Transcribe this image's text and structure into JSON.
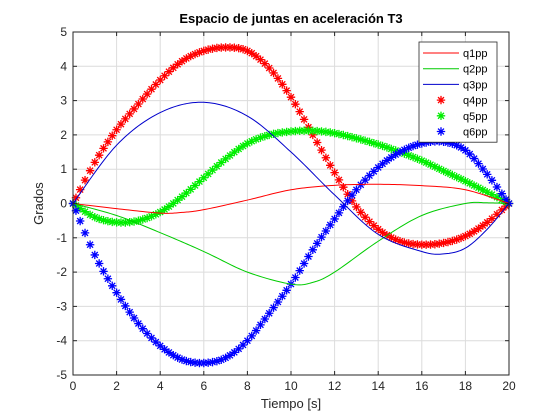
{
  "chart_data": {
    "type": "line",
    "title": "Espacio de juntas en aceleración T3",
    "xlabel": "Tiempo [s]",
    "ylabel": "Grados",
    "xlim": [
      0,
      20
    ],
    "ylim": [
      -5,
      5
    ],
    "xticks": [
      "0",
      "2",
      "4",
      "6",
      "8",
      "10",
      "12",
      "14",
      "16",
      "18",
      "20"
    ],
    "yticks": [
      "-5",
      "-4",
      "-3",
      "-2",
      "-1",
      "0",
      "1",
      "2",
      "3",
      "4",
      "5"
    ],
    "grid": true,
    "legend_position": "top-right",
    "series": [
      {
        "name": "q1pp",
        "style": "line",
        "color": "#ff0000",
        "x": [
          0,
          2,
          4,
          5,
          6,
          8,
          10,
          12,
          14,
          16,
          18,
          20
        ],
        "y": [
          0,
          -0.15,
          -0.28,
          -0.26,
          -0.18,
          0.1,
          0.4,
          0.53,
          0.56,
          0.52,
          0.4,
          0
        ]
      },
      {
        "name": "q2pp",
        "style": "line",
        "color": "#00cc00",
        "x": [
          0,
          2,
          4,
          6,
          8,
          10,
          11,
          12,
          14,
          16,
          18,
          19,
          20
        ],
        "y": [
          0,
          -0.35,
          -0.85,
          -1.4,
          -2.0,
          -2.35,
          -2.3,
          -2.0,
          -1.1,
          -0.35,
          0,
          0.02,
          0
        ]
      },
      {
        "name": "q3pp",
        "style": "line",
        "color": "#0000cc",
        "x": [
          0,
          2,
          4,
          6,
          8,
          10,
          12,
          14,
          16,
          17,
          18,
          19,
          20
        ],
        "y": [
          0,
          1.7,
          2.65,
          2.95,
          2.55,
          1.5,
          0.25,
          -0.9,
          -1.4,
          -1.47,
          -1.3,
          -0.75,
          0
        ]
      },
      {
        "name": "q4pp",
        "style": "markers",
        "color": "#ff0000",
        "x": [
          0,
          1,
          2,
          3,
          4,
          5,
          6,
          7,
          8,
          9,
          10,
          11,
          12,
          13,
          14,
          15,
          16,
          17,
          18,
          19,
          20
        ],
        "y": [
          0,
          1.2,
          2.15,
          2.9,
          3.6,
          4.15,
          4.45,
          4.55,
          4.45,
          3.95,
          3.1,
          2.0,
          0.9,
          -0.1,
          -0.75,
          -1.1,
          -1.2,
          -1.15,
          -0.95,
          -0.55,
          0
        ]
      },
      {
        "name": "q5pp",
        "style": "markers",
        "color": "#00ee00",
        "x": [
          0,
          1,
          2,
          3,
          4,
          5,
          6,
          7,
          8,
          9,
          10,
          11,
          12,
          13,
          14,
          15,
          16,
          17,
          18,
          19,
          20
        ],
        "y": [
          0,
          -0.4,
          -0.55,
          -0.5,
          -0.25,
          0.2,
          0.75,
          1.3,
          1.75,
          2.0,
          2.1,
          2.12,
          2.05,
          1.9,
          1.72,
          1.5,
          1.25,
          0.95,
          0.65,
          0.33,
          0
        ]
      },
      {
        "name": "q6pp",
        "style": "markers",
        "color": "#0000ff",
        "x": [
          0,
          1,
          2,
          3,
          4,
          5,
          6,
          7,
          8,
          9,
          10,
          11,
          12,
          13,
          14,
          15,
          16,
          17,
          18,
          19,
          20
        ],
        "y": [
          0,
          -1.5,
          -2.6,
          -3.5,
          -4.15,
          -4.55,
          -4.65,
          -4.5,
          -4.0,
          -3.2,
          -2.35,
          -1.35,
          -0.45,
          0.4,
          1.05,
          1.5,
          1.75,
          1.8,
          1.55,
          0.85,
          0
        ]
      }
    ]
  }
}
